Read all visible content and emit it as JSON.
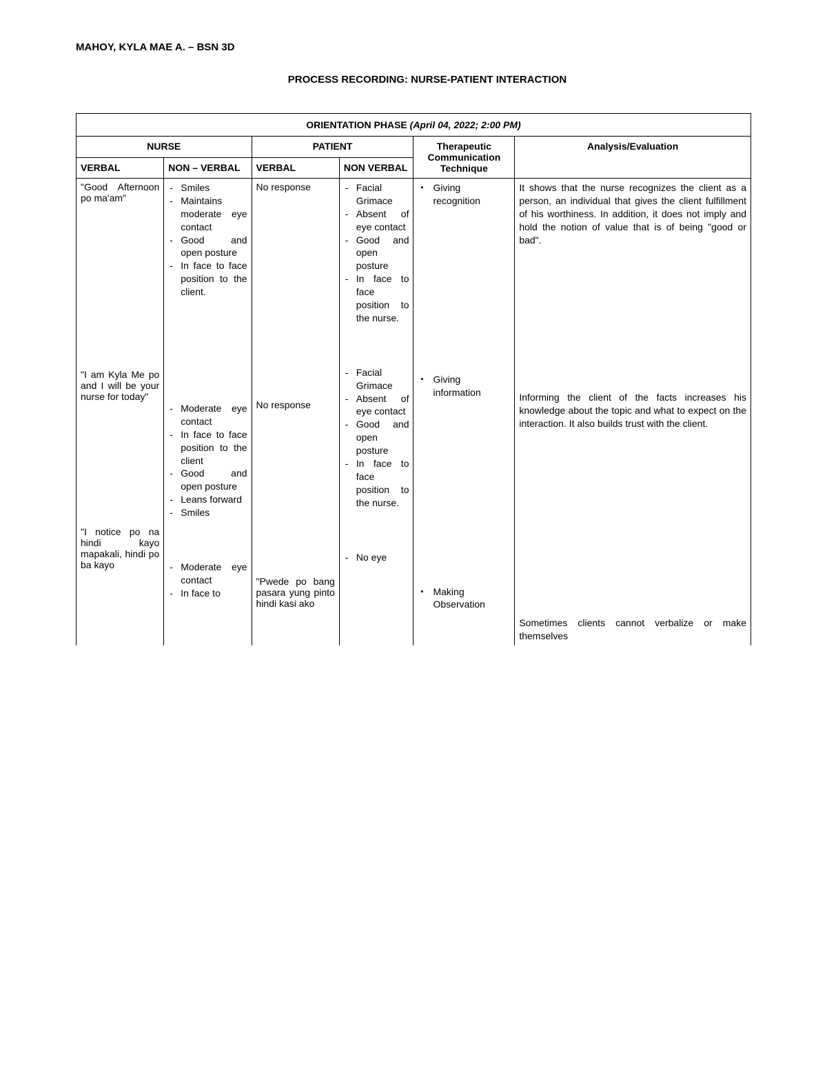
{
  "header": {
    "name": "MAHOY, KYLA MAE A. – BSN 3D",
    "title": "PROCESS RECORDING: NURSE-PATIENT INTERACTION"
  },
  "phase": {
    "label": "ORIENTATION PHASE",
    "datetime": "(April 04, 2022; 2:00 PM)"
  },
  "columns": {
    "nurse": "NURSE",
    "patient": "PATIENT",
    "technique": "Therapeutic Communication Technique",
    "analysis": "Analysis/Evaluation",
    "verbal": "VERBAL",
    "nonverbal_nurse": "NON – VERBAL",
    "nonverbal_patient": "NON VERBAL"
  },
  "rows": [
    {
      "nurse_verbal": "\"Good Afternoon po ma'am\"",
      "nurse_nonverbal": [
        "Smiles",
        "Maintains moderate eye contact",
        "Good and open posture",
        "In face to face position to the client."
      ],
      "patient_verbal": "No response",
      "patient_nonverbal": [
        "Facial Grimace",
        "Absent of eye contact",
        "Good and open posture",
        "In face to face position to the nurse."
      ],
      "technique": [
        "Giving recognition",
        "Giving information"
      ],
      "analysis": "It shows that the nurse recognizes the client as a person, an individual that gives the client fulfillment of his worthiness. In addition, it does not imply and hold the notion of value that is of being \"good or bad\"."
    },
    {
      "nurse_verbal": "\"I am Kyla Me po and I will be your nurse for today\"",
      "nurse_nonverbal": [
        "Moderate eye contact",
        "In face to face position to the client",
        "Good and open posture",
        "Leans forward",
        "Smiles"
      ],
      "patient_verbal": "No response",
      "patient_nonverbal": [
        "Facial Grimace",
        "Absent of eye contact",
        "Good and open posture",
        "In face to face position to the nurse."
      ],
      "technique": [
        "Making Observation"
      ],
      "analysis": "Informing the client of the facts increases his knowledge about the topic and what to expect on the interaction. It also builds trust with the client."
    },
    {
      "nurse_verbal": "\"I notice po na hindi kayo mapakali, hindi po ba kayo",
      "nurse_nonverbal": [
        "Moderate eye contact",
        "In face to"
      ],
      "patient_verbal": "\"Pwede po bang pasara yung pinto hindi kasi ako",
      "patient_nonverbal": [
        "No eye"
      ],
      "technique": [],
      "analysis": "Sometimes clients cannot verbalize or make themselves"
    }
  ]
}
